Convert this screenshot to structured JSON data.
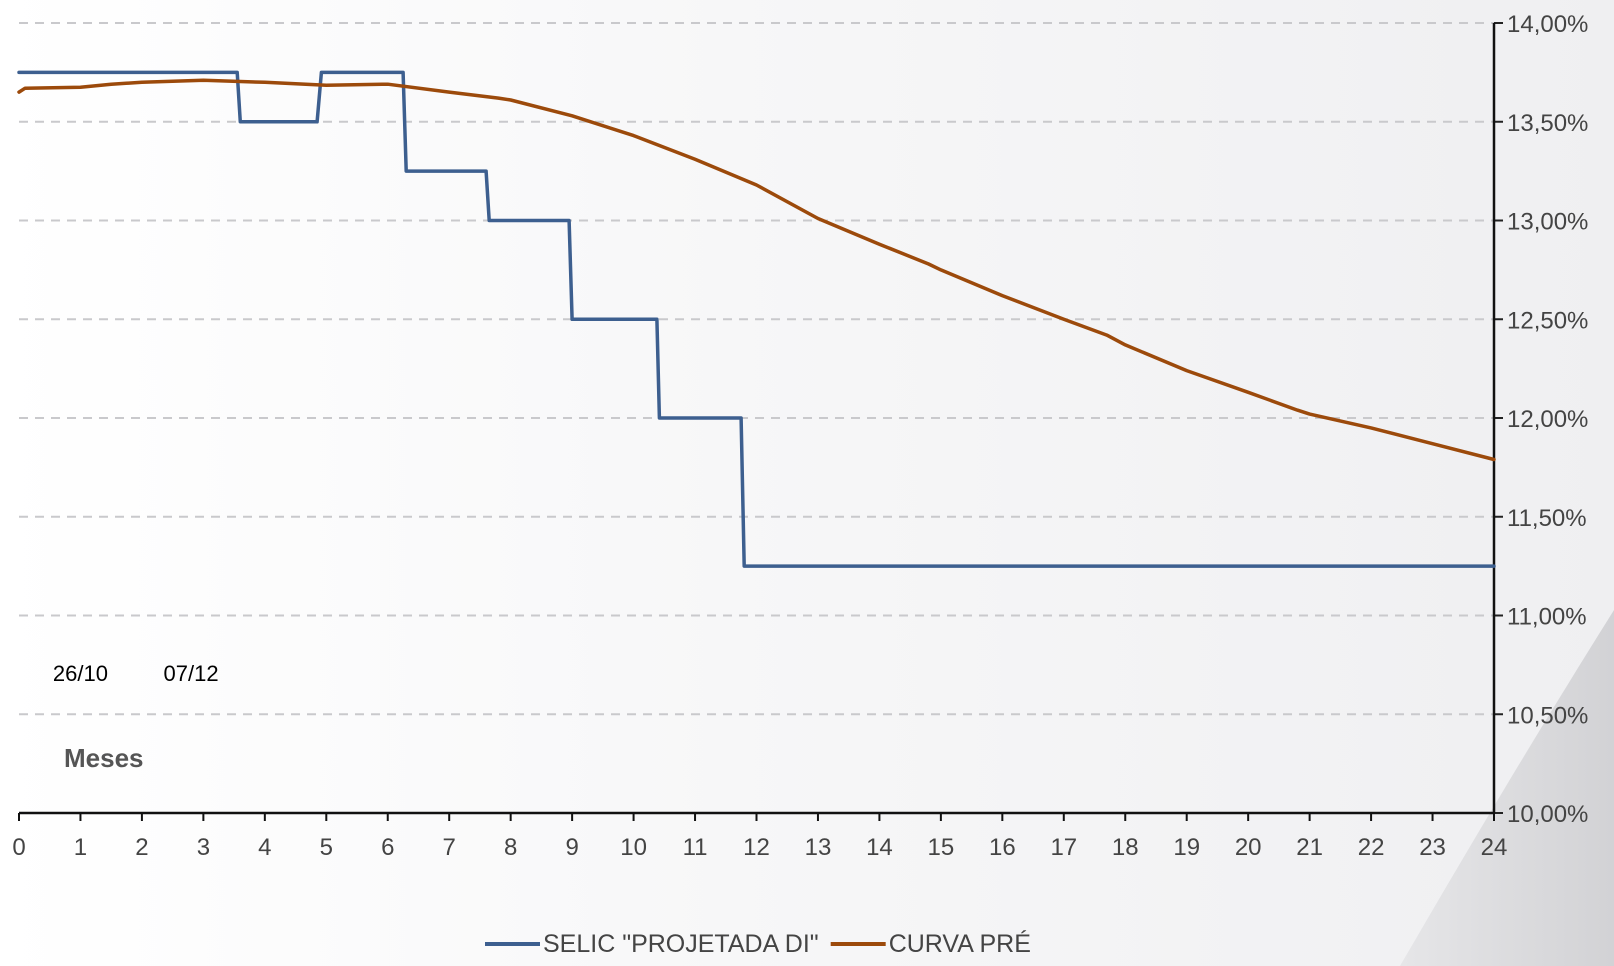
{
  "chart_data": {
    "type": "line",
    "title": "",
    "xlabel": "Meses",
    "ylabel": "",
    "x_ticks": [
      "0",
      "1",
      "2",
      "3",
      "4",
      "5",
      "6",
      "7",
      "8",
      "9",
      "10",
      "11",
      "12",
      "13",
      "14",
      "15",
      "16",
      "17",
      "18",
      "19",
      "20",
      "21",
      "22",
      "23",
      "24"
    ],
    "y_ticks": [
      "10,00%",
      "10,50%",
      "11,00%",
      "11,50%",
      "12,00%",
      "12,50%",
      "13,00%",
      "13,50%",
      "14,00%"
    ],
    "xlim": [
      0,
      24
    ],
    "ylim": [
      10.0,
      14.0
    ],
    "y_axis_side": "right",
    "grid": "horizontal-dashed",
    "legend_position": "bottom",
    "annotations": [
      {
        "text": "26/10",
        "x": 1.0
      },
      {
        "text": "07/12",
        "x": 2.8
      }
    ],
    "series": [
      {
        "name": "SELIC \"PROJETADA DI\"",
        "color": "#3d5f8f",
        "points": [
          [
            0.0,
            13.75
          ],
          [
            3.55,
            13.75
          ],
          [
            3.6,
            13.5
          ],
          [
            4.85,
            13.5
          ],
          [
            4.92,
            13.75
          ],
          [
            6.25,
            13.75
          ],
          [
            6.3,
            13.25
          ],
          [
            7.6,
            13.25
          ],
          [
            7.65,
            13.0
          ],
          [
            8.95,
            13.0
          ],
          [
            9.0,
            12.5
          ],
          [
            10.38,
            12.5
          ],
          [
            10.42,
            12.0
          ],
          [
            11.75,
            12.0
          ],
          [
            11.8,
            11.25
          ],
          [
            24.0,
            11.25
          ]
        ]
      },
      {
        "name": "CURVA PRÉ",
        "color": "#9c4a0b",
        "points": [
          [
            0.0,
            13.65
          ],
          [
            0.1,
            13.67
          ],
          [
            1.0,
            13.675
          ],
          [
            1.5,
            13.69
          ],
          [
            2.0,
            13.7
          ],
          [
            3.0,
            13.71
          ],
          [
            4.0,
            13.7
          ],
          [
            5.0,
            13.685
          ],
          [
            6.0,
            13.69
          ],
          [
            7.0,
            13.65
          ],
          [
            7.8,
            13.62
          ],
          [
            8.0,
            13.61
          ],
          [
            9.0,
            13.53
          ],
          [
            10.0,
            13.43
          ],
          [
            11.0,
            13.31
          ],
          [
            12.0,
            13.18
          ],
          [
            13.0,
            13.01
          ],
          [
            14.0,
            12.88
          ],
          [
            14.8,
            12.78
          ],
          [
            15.0,
            12.75
          ],
          [
            16.0,
            12.62
          ],
          [
            17.0,
            12.5
          ],
          [
            17.7,
            12.42
          ],
          [
            18.0,
            12.37
          ],
          [
            19.0,
            12.24
          ],
          [
            20.0,
            12.13
          ],
          [
            20.8,
            12.04
          ],
          [
            21.0,
            12.02
          ],
          [
            22.0,
            11.95
          ],
          [
            23.0,
            11.87
          ],
          [
            24.0,
            11.79
          ]
        ]
      }
    ]
  }
}
